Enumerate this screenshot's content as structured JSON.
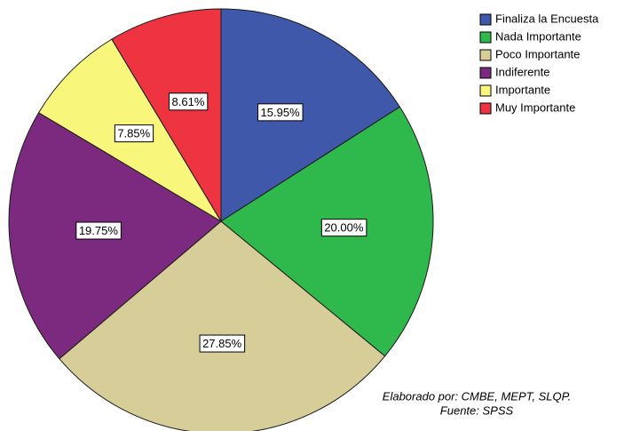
{
  "chart_data": {
    "type": "pie",
    "categories": [
      "Finaliza la Encuesta",
      "Nada Importante",
      "Poco Importante",
      "Indiferente",
      "Importante",
      "Muy Importante"
    ],
    "values": [
      15.95,
      20.0,
      27.85,
      19.75,
      7.85,
      8.61
    ],
    "value_labels": [
      "15.95%",
      "20.00%",
      "27.85%",
      "19.75%",
      "7.85%",
      "8.61%"
    ],
    "colors": [
      "#3f58a9",
      "#2fb84b",
      "#d6cd98",
      "#7c2a7f",
      "#f8f67b",
      "#ee3440"
    ],
    "annotations": [
      "Elaborado por: CMBE, MEPT, SLQP.",
      "Fuente: SPSS"
    ]
  }
}
